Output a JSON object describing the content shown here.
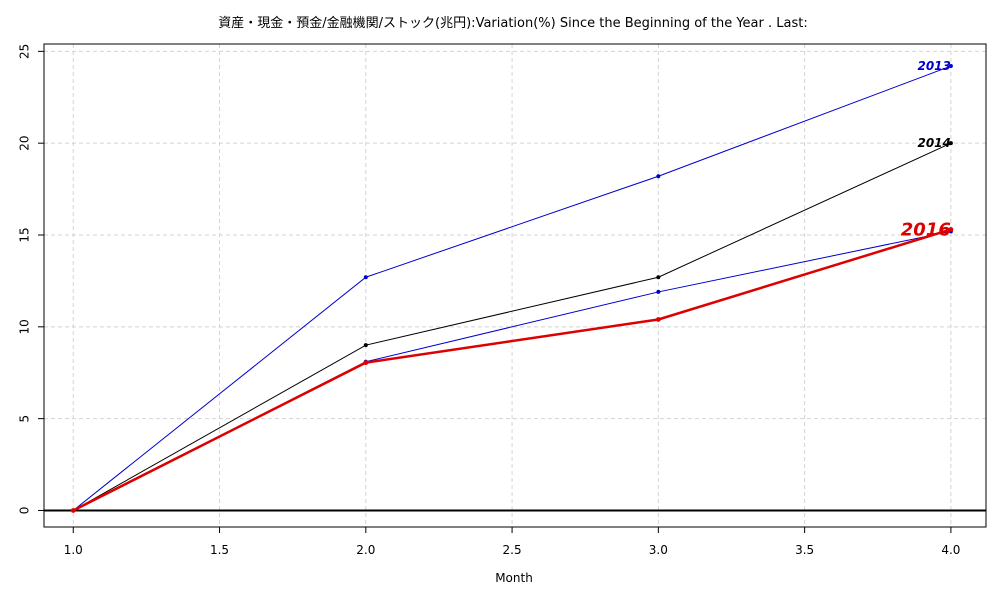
{
  "chart_data": {
    "type": "line",
    "title": "資産・現金・預金/金融機関/ストック(兆円):Variation(%) Since the Beginning of the Year . Last:",
    "xlabel": "Month",
    "ylabel": "",
    "xlim": [
      0.9,
      4.12
    ],
    "ylim": [
      -0.9,
      25.4
    ],
    "xticks": [
      "1.0",
      "1.5",
      "2.0",
      "2.5",
      "3.0",
      "3.5",
      "4.0"
    ],
    "xtick_values": [
      1.0,
      1.5,
      2.0,
      2.5,
      3.0,
      3.5,
      4.0
    ],
    "yticks": [
      "0",
      "5",
      "10",
      "15",
      "20",
      "25"
    ],
    "ytick_values": [
      0,
      5,
      10,
      15,
      20,
      25
    ],
    "grid": true,
    "series": [
      {
        "name": "2013",
        "x": [
          1,
          2,
          3,
          4
        ],
        "values": [
          0,
          12.7,
          18.2,
          24.2
        ],
        "color": "#0000cc",
        "labeled": true
      },
      {
        "name": "2014",
        "x": [
          1,
          2,
          3,
          4
        ],
        "values": [
          0,
          9.0,
          12.7,
          20.0
        ],
        "color": "#000000",
        "labeled": true
      },
      {
        "name": "",
        "x": [
          1,
          2,
          3,
          4
        ],
        "values": [
          0,
          8.1,
          11.9,
          15.2
        ],
        "color": "#0000cc",
        "labeled": false
      },
      {
        "name": "2016",
        "x": [
          1,
          2,
          3,
          4
        ],
        "values": [
          0,
          8.05,
          10.4,
          15.3
        ],
        "color": "#dd0000",
        "labeled": true,
        "emphasis": true
      }
    ]
  }
}
